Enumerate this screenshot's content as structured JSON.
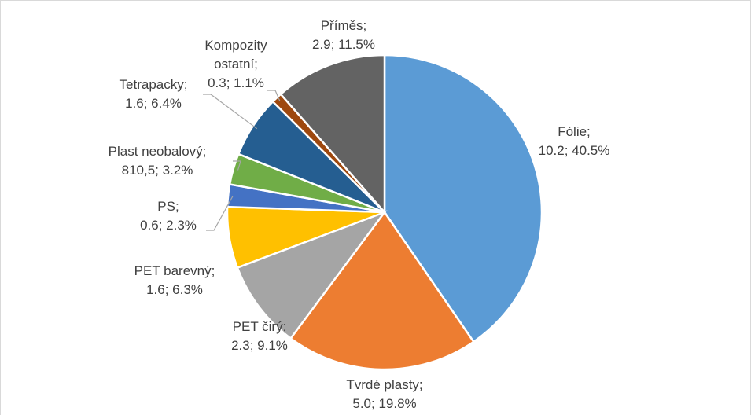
{
  "chart_data": {
    "type": "pie",
    "categories": [
      "Fólie;",
      "Tvrdé plasty;",
      "PET čirý;",
      "PET barevný;",
      "PS;",
      "Plast neobalový;",
      "Tetrapacky;",
      "Kompozity ostatní;",
      "Příměs;"
    ],
    "values": [
      40.5,
      19.8,
      9.1,
      6.3,
      2.3,
      3.2,
      6.4,
      1.1,
      11.5
    ],
    "value_labels": [
      "10.2; 40.5%",
      "5.0; 19.8%",
      "2.3; 9.1%",
      "1.6; 6.3%",
      "0.6; 2.3%",
      "810,5; 3.2%",
      "1.6; 6.4%",
      "0.3; 1.1%",
      "2.9; 11.5%"
    ],
    "colors": [
      "#5b9bd5",
      "#ed7d31",
      "#a5a5a5",
      "#ffc000",
      "#4472c4",
      "#70ad47",
      "#255e91",
      "#9e480e",
      "#636363"
    ]
  }
}
